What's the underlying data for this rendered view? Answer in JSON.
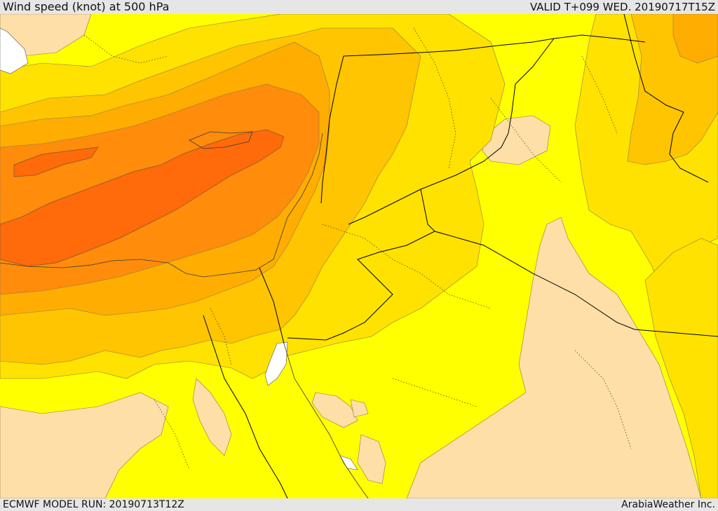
{
  "header": {
    "title": "Wind speed (knot) at 500 hPa",
    "valid": "VALID T+099 WED. 20190717T15Z"
  },
  "footer": {
    "model_run": "ECMWF MODEL RUN: 20190713T12Z",
    "credit": "ArabiaWeather Inc."
  },
  "colors": {
    "lowest": "#fddfa7",
    "low": "#ffff00",
    "mid_low": "#ffe200",
    "mid": "#ffc500",
    "mid_high": "#ffad00",
    "high": "#ff8c0a",
    "highest": "#ff6a0a",
    "land_sea_line": "#5a4a30",
    "border_line": "#000000",
    "sea_gap": "#ffffff"
  }
}
